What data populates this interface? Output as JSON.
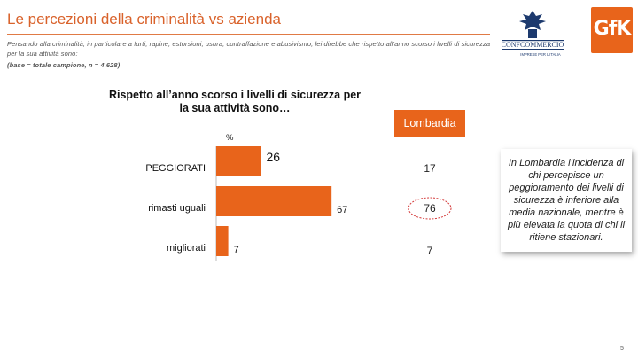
{
  "header": {
    "title": "Le percezioni della criminalità vs azienda",
    "intro_line1": "Pensando alla criminalità, in particolare a furti, rapine, estorsioni, usura, contraffazione e abusivismo, lei direbbe che rispetto all’anno scorso i livelli di sicurezza",
    "intro_line2": "per la sua attività sono:",
    "intro_base": "(base = totale campione, n = 4.628)"
  },
  "logos": {
    "confcommercio": "CONFCOMMERCIO",
    "confcommercio_sub": "IMPRESE PER L'ITALIA",
    "gfk": "GfK"
  },
  "question": "Rispetto all’anno scorso i livelli di sicurezza per la sua attività sono…",
  "percent_label": "%",
  "region": {
    "label": "Lombardia",
    "values": [
      "17",
      "76",
      "7"
    ]
  },
  "note": "In Lombardia l’incidenza di chi percepisce un peggioramento dei livelli di sicurezza è inferiore alla media nazionale, mentre è più elevata la quota di chi li ritiene stazionari.",
  "page_number": "5",
  "colors": {
    "accent": "#e8641b",
    "title": "#d9622b"
  },
  "chart_data": {
    "type": "bar",
    "orientation": "horizontal",
    "categories": [
      "PEGGIORATI",
      "rimasti uguali",
      "migliorati"
    ],
    "values": [
      26,
      67,
      7
    ],
    "xlim": [
      0,
      70
    ],
    "grid": false
  }
}
